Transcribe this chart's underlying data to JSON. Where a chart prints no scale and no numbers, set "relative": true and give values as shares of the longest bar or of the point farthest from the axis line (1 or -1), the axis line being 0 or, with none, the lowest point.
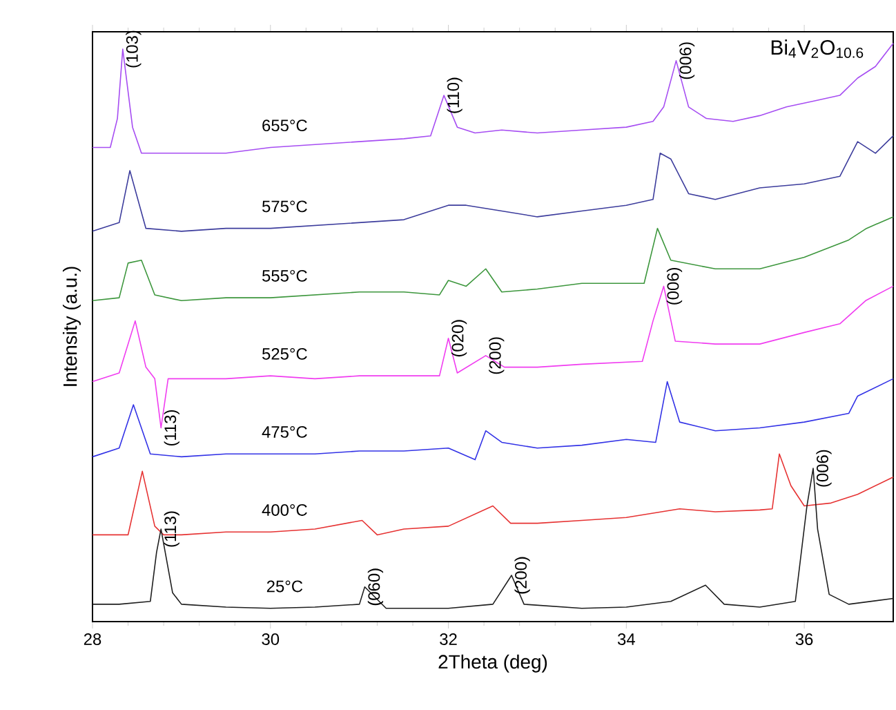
{
  "chart_data": {
    "type": "line",
    "relative": true,
    "xlabel": "2Theta (deg)",
    "ylabel": "Intensity (a.u.)",
    "xlim": [
      28,
      37
    ],
    "xticks": [
      28,
      30,
      32,
      34,
      36
    ],
    "series": [
      {
        "name": "655°C",
        "color": "#a64df2",
        "x": [
          28.0,
          28.2,
          28.28,
          28.34,
          28.45,
          28.55,
          29.0,
          29.5,
          30.0,
          30.5,
          31.0,
          31.5,
          31.8,
          31.95,
          32.1,
          32.3,
          32.6,
          33.0,
          33.5,
          34.0,
          34.3,
          34.42,
          34.56,
          34.7,
          34.9,
          35.2,
          35.5,
          35.8,
          36.1,
          36.4,
          36.6,
          36.8,
          37.0
        ],
        "values": [
          0.82,
          0.82,
          0.87,
          0.99,
          0.855,
          0.81,
          0.81,
          0.81,
          0.82,
          0.825,
          0.83,
          0.835,
          0.84,
          0.91,
          0.855,
          0.845,
          0.85,
          0.845,
          0.85,
          0.855,
          0.865,
          0.89,
          0.97,
          0.89,
          0.87,
          0.865,
          0.875,
          0.89,
          0.9,
          0.91,
          0.94,
          0.96,
          1.0
        ]
      },
      {
        "name": "575°C",
        "color": "#3c3c9c",
        "x": [
          28.0,
          28.3,
          28.42,
          28.6,
          29.0,
          29.5,
          30.0,
          30.5,
          31.0,
          31.5,
          32.0,
          32.2,
          32.6,
          33.0,
          33.5,
          34.0,
          34.3,
          34.38,
          34.5,
          34.7,
          35.0,
          35.5,
          36.0,
          36.4,
          36.5,
          36.6,
          36.8,
          37.0
        ],
        "values": [
          0.675,
          0.69,
          0.78,
          0.68,
          0.675,
          0.68,
          0.68,
          0.685,
          0.69,
          0.695,
          0.72,
          0.72,
          0.71,
          0.7,
          0.71,
          0.72,
          0.73,
          0.81,
          0.8,
          0.74,
          0.73,
          0.75,
          0.757,
          0.77,
          0.8,
          0.83,
          0.81,
          0.84
        ]
      },
      {
        "name": "555°C",
        "color": "#3c963c",
        "x": [
          28.0,
          28.3,
          28.4,
          28.55,
          28.7,
          29.0,
          29.5,
          30.0,
          30.5,
          31.0,
          31.5,
          31.9,
          32.0,
          32.2,
          32.42,
          32.6,
          33.0,
          33.5,
          34.0,
          34.2,
          34.35,
          34.5,
          35.0,
          35.5,
          36.0,
          36.5,
          36.7,
          37.0
        ],
        "values": [
          0.555,
          0.56,
          0.62,
          0.625,
          0.565,
          0.555,
          0.56,
          0.56,
          0.565,
          0.57,
          0.57,
          0.565,
          0.59,
          0.58,
          0.61,
          0.57,
          0.575,
          0.585,
          0.585,
          0.585,
          0.68,
          0.625,
          0.61,
          0.61,
          0.63,
          0.66,
          0.68,
          0.7
        ]
      },
      {
        "name": "525°C",
        "color": "#f03cf0",
        "x": [
          28.0,
          28.3,
          28.48,
          28.6,
          28.7,
          28.77,
          28.85,
          29.0,
          29.5,
          30.0,
          30.5,
          31.0,
          31.5,
          31.9,
          32.0,
          32.1,
          32.42,
          32.63,
          33.0,
          33.5,
          34.18,
          34.3,
          34.42,
          34.55,
          35.0,
          35.5,
          36.0,
          36.4,
          36.69,
          37.0
        ],
        "values": [
          0.415,
          0.43,
          0.52,
          0.44,
          0.42,
          0.335,
          0.42,
          0.42,
          0.42,
          0.425,
          0.42,
          0.425,
          0.425,
          0.425,
          0.49,
          0.43,
          0.46,
          0.44,
          0.44,
          0.445,
          0.45,
          0.52,
          0.58,
          0.485,
          0.48,
          0.48,
          0.5,
          0.515,
          0.555,
          0.58
        ]
      },
      {
        "name": "475°C",
        "color": "#3232e6",
        "x": [
          28.0,
          28.3,
          28.46,
          28.65,
          29.0,
          29.5,
          30.0,
          30.5,
          31.0,
          31.5,
          32.0,
          32.3,
          32.42,
          32.6,
          33.0,
          33.5,
          34.0,
          34.33,
          34.46,
          34.6,
          35.0,
          35.5,
          36.0,
          36.5,
          36.6,
          37.0
        ],
        "values": [
          0.285,
          0.3,
          0.375,
          0.29,
          0.285,
          0.29,
          0.29,
          0.29,
          0.295,
          0.295,
          0.3,
          0.28,
          0.33,
          0.31,
          0.3,
          0.305,
          0.315,
          0.31,
          0.415,
          0.345,
          0.33,
          0.335,
          0.345,
          0.36,
          0.39,
          0.42
        ]
      },
      {
        "name": "400°C",
        "color": "#e63232",
        "x": [
          28.0,
          28.4,
          28.56,
          28.7,
          28.8,
          29.0,
          29.5,
          30.0,
          30.5,
          31.03,
          31.2,
          31.5,
          32.0,
          32.5,
          32.7,
          33.0,
          33.5,
          34.0,
          34.6,
          35.0,
          35.5,
          35.64,
          35.72,
          35.85,
          36.0,
          36.3,
          36.6,
          37.0
        ],
        "values": [
          0.15,
          0.15,
          0.26,
          0.165,
          0.15,
          0.15,
          0.155,
          0.155,
          0.16,
          0.175,
          0.15,
          0.16,
          0.165,
          0.2,
          0.17,
          0.17,
          0.175,
          0.18,
          0.195,
          0.19,
          0.193,
          0.195,
          0.29,
          0.235,
          0.2,
          0.205,
          0.22,
          0.25
        ]
      },
      {
        "name": "25°C",
        "color": "#1e1e1e",
        "x": [
          28.0,
          28.3,
          28.65,
          28.72,
          28.77,
          28.9,
          29.0,
          29.5,
          30.0,
          30.5,
          31.0,
          31.06,
          31.3,
          32.0,
          32.5,
          32.71,
          32.85,
          33.5,
          34.0,
          34.5,
          34.89,
          35.1,
          35.5,
          35.9,
          36.03,
          36.1,
          36.15,
          36.28,
          36.5,
          37.0
        ],
        "values": [
          0.03,
          0.03,
          0.035,
          0.12,
          0.16,
          0.05,
          0.03,
          0.025,
          0.023,
          0.025,
          0.03,
          0.06,
          0.023,
          0.023,
          0.03,
          0.08,
          0.03,
          0.023,
          0.025,
          0.035,
          0.063,
          0.03,
          0.025,
          0.035,
          0.2,
          0.265,
          0.16,
          0.047,
          0.03,
          0.04
        ]
      }
    ],
    "annotations": [
      {
        "text": "(103)",
        "x": 28.34,
        "y": 0.99
      },
      {
        "text": "(110)",
        "x": 31.95,
        "y": 0.91
      },
      {
        "text": "(006)",
        "x": 34.56,
        "y": 0.97
      },
      {
        "text": "(113)",
        "x": 28.77,
        "y": 0.335
      },
      {
        "text": "(020)",
        "x": 32.0,
        "y": 0.49
      },
      {
        "text": "(200)",
        "x": 32.42,
        "y": 0.46
      },
      {
        "text": "(006)",
        "x": 34.42,
        "y": 0.58
      },
      {
        "text": "(113)",
        "x": 28.77,
        "y": 0.16
      },
      {
        "text": "(060)",
        "x": 31.06,
        "y": 0.06
      },
      {
        "text": "(200)",
        "x": 32.71,
        "y": 0.08
      },
      {
        "text": "(006)",
        "x": 36.1,
        "y": 0.265
      },
      "Bi$_{4}$V$_{2}$O$_{10.6}$"
    ]
  }
}
